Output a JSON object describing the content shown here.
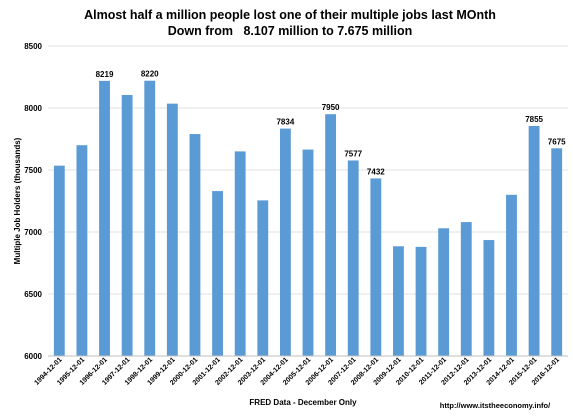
{
  "chart_data": {
    "type": "bar",
    "title": "Almost half a million people lost one of their multiple jobs last MOnth",
    "subtitle": "Down from   8.107 million to 7.675 million",
    "xlabel": "FRED Data - December Only",
    "ylabel": "Multiple Job Holders (thousands)",
    "ylim": [
      6000,
      8500
    ],
    "yticks": [
      6000,
      6500,
      7000,
      7500,
      8000,
      8500
    ],
    "grid": true,
    "bar_color": "#5B9BD5",
    "categories": [
      "1994-12-01",
      "1995-12-01",
      "1996-12-01",
      "1997-12-01",
      "1998-12-01",
      "1999-12-01",
      "2000-12-01",
      "2001-12-01",
      "2002-12-01",
      "2003-12-01",
      "2004-12-01",
      "2005-12-01",
      "2006-12-01",
      "2007-12-01",
      "2008-12-01",
      "2009-12-01",
      "2010-12-01",
      "2011-12-01",
      "2012-12-01",
      "2013-12-01",
      "2014-12-01",
      "2015-12-01",
      "2016-12-01"
    ],
    "values": [
      7535,
      7700,
      8219,
      8105,
      8220,
      8035,
      7790,
      7330,
      7650,
      7255,
      7834,
      7665,
      7950,
      7577,
      7432,
      6885,
      6880,
      7030,
      7080,
      6935,
      7300,
      7855,
      7675
    ],
    "data_labels": [
      {
        "index": 2,
        "text": "8219"
      },
      {
        "index": 4,
        "text": "8220"
      },
      {
        "index": 10,
        "text": "7834"
      },
      {
        "index": 12,
        "text": "7950"
      },
      {
        "index": 13,
        "text": "7577"
      },
      {
        "index": 14,
        "text": "7432"
      },
      {
        "index": 21,
        "text": "7855"
      },
      {
        "index": 22,
        "text": "7675"
      }
    ],
    "source_note": "http://www.itstheeconomy.info/"
  }
}
